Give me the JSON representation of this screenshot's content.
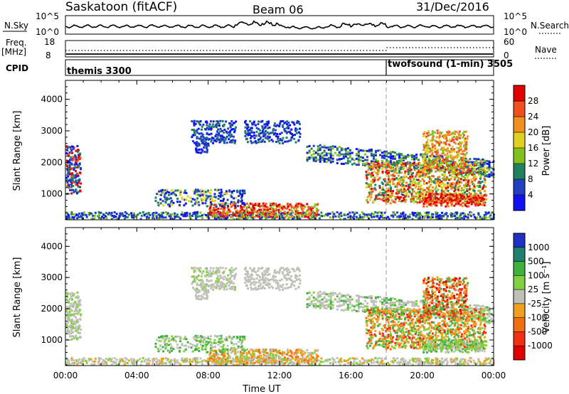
{
  "header": {
    "station": "Saskatoon (fitACF)",
    "beam": "Beam 06",
    "date": "31/Dec/2016"
  },
  "strip_panels": {
    "nsky": {
      "left_label": "N.Sky",
      "right_label": "N.Search",
      "ticks_left": [
        "10^5",
        "10^0"
      ],
      "ticks_right": [
        "10^5",
        "10^0"
      ]
    },
    "freq": {
      "left_label_1": "Freq.",
      "left_label_2": "[MHz]",
      "right_label": "Nave",
      "ticks_left": [
        "18",
        "8"
      ],
      "ticks_right": [
        "60",
        "0"
      ]
    },
    "cpid": {
      "label": "CPID",
      "segments": [
        {
          "name": "themis",
          "id": "3300",
          "text": "themis 3300",
          "start_hour": 0
        },
        {
          "name": "twofsound (1-min)",
          "id": "3505",
          "text": "twofsound (1-min) 3505",
          "start_hour": 18
        }
      ]
    }
  },
  "chart_data": [
    {
      "type": "heatmap",
      "name": "power",
      "ylabel": "Slant Range [km]",
      "ylim": [
        180,
        4600
      ],
      "yticks": [
        "1000",
        "2000",
        "3000",
        "4000"
      ],
      "xlim_hours": [
        0,
        24
      ],
      "colorbar": {
        "label": "Power [dB]",
        "ticks": [
          "4",
          "8",
          "12",
          "16",
          "20",
          "24",
          "28"
        ],
        "colors": [
          "#1010f0",
          "#2040c0",
          "#208060",
          "#80c020",
          "#e0d020",
          "#f09020",
          "#f05020",
          "#e00000"
        ]
      }
    },
    {
      "type": "heatmap",
      "name": "velocity",
      "ylabel": "Slant Range [km]",
      "ylim": [
        180,
        4600
      ],
      "yticks": [
        "1000",
        "2000",
        "3000",
        "4000"
      ],
      "xlim_hours": [
        0,
        24
      ],
      "colorbar": {
        "label": "Velocity [m s⁻¹]",
        "ticks": [
          "1000",
          "500",
          "100",
          "25",
          "-25",
          "-100",
          "-500",
          "-1000"
        ],
        "colors": [
          "#2030c0",
          "#208070",
          "#40b040",
          "#80d040",
          "#c0c0b8",
          "#f0a020",
          "#f07010",
          "#f03010",
          "#e00000"
        ]
      }
    }
  ],
  "xaxis": {
    "label": "Time UT",
    "ticks": [
      "00:00",
      "04:00",
      "08:00",
      "12:00",
      "16:00",
      "20:00",
      "00:00"
    ]
  }
}
